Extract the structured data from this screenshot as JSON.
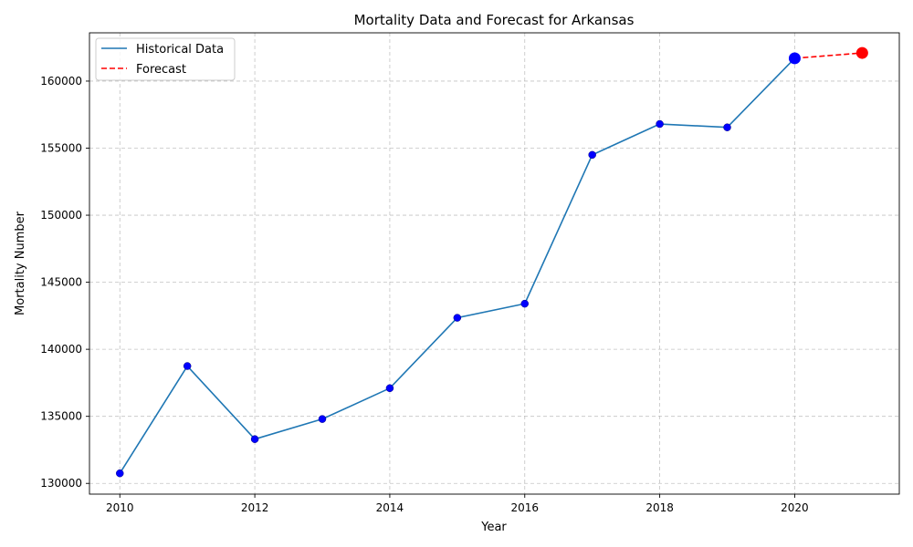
{
  "chart_data": {
    "type": "line",
    "title": "Mortality Data and Forecast for Arkansas",
    "xlabel": "Year",
    "ylabel": "Mortality Number",
    "xlim": [
      2009.55,
      2021.55
    ],
    "ylim": [
      129200,
      163600
    ],
    "x_ticks": [
      2010,
      2012,
      2014,
      2016,
      2018,
      2020
    ],
    "y_ticks": [
      130000,
      135000,
      140000,
      145000,
      150000,
      155000,
      160000
    ],
    "grid": true,
    "legend_position": "top-left",
    "series": [
      {
        "name": "Historical Data",
        "style": "solid",
        "color": "#1f77b4",
        "marker_color": "#0000ff",
        "x": [
          2010,
          2011,
          2012,
          2013,
          2014,
          2015,
          2016,
          2017,
          2018,
          2019,
          2020
        ],
        "values": [
          130750,
          138750,
          133300,
          134800,
          137100,
          142350,
          143400,
          154500,
          156800,
          156550,
          161700
        ]
      },
      {
        "name": "Forecast",
        "style": "dashed",
        "color": "#ff0000",
        "marker_color": "#ff0000",
        "x": [
          2020,
          2021
        ],
        "values": [
          161700,
          162100
        ]
      }
    ],
    "highlight_points": [
      {
        "x": 2020,
        "value": 161700,
        "color": "#0000ff"
      },
      {
        "x": 2021,
        "value": 162100,
        "color": "#ff0000"
      }
    ]
  }
}
